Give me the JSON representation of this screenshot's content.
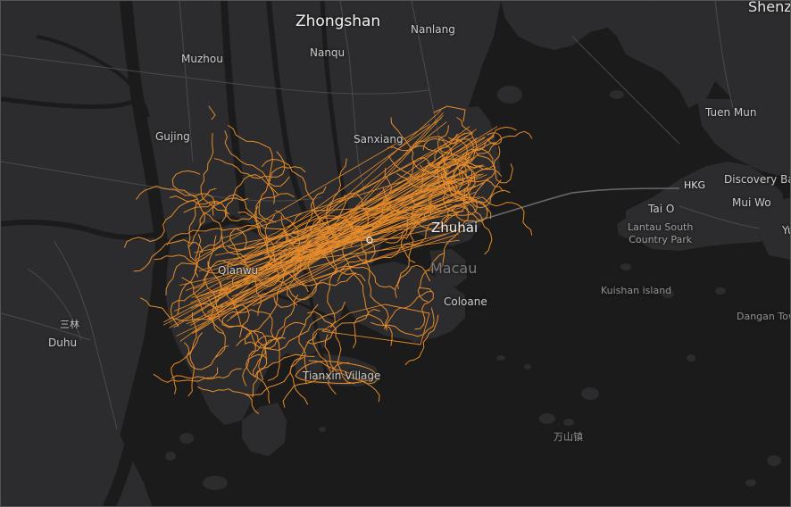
{
  "map": {
    "style": "dark",
    "colors": {
      "water": "#1b1b1c",
      "land": "#2c2c2e",
      "roads": "#4a4a4c",
      "track": "#f0912b",
      "label": "#c9c9c9"
    },
    "labels": {
      "zhongshan": "Zhongshan",
      "nanlang": "Nanlang",
      "nanqu": "Nanqu",
      "muzhou": "Muzhou",
      "shenzhen": "Shenz",
      "tuen_mun": "Tuen Mun",
      "gujing": "Gujing",
      "sanxiang": "Sanxiang",
      "discovery_bay": "Discovery Ba",
      "hkg": "HKG",
      "tai_o": "Tai O",
      "mui_wo": "Mui Wo",
      "yu": "Yu",
      "zhuhai": "Zhuhai",
      "lantau_park": "Lantau South\nCountry Park",
      "macau": "Macau",
      "qianwu": "Qianwu",
      "kuishan": "Kuishan island",
      "coloane": "Coloane",
      "sanlin": "三林",
      "dangan": "Dangan Tow",
      "duhu": "Duhu",
      "tianxin": "Tianxin Village",
      "wanshan": "万山镇"
    }
  }
}
